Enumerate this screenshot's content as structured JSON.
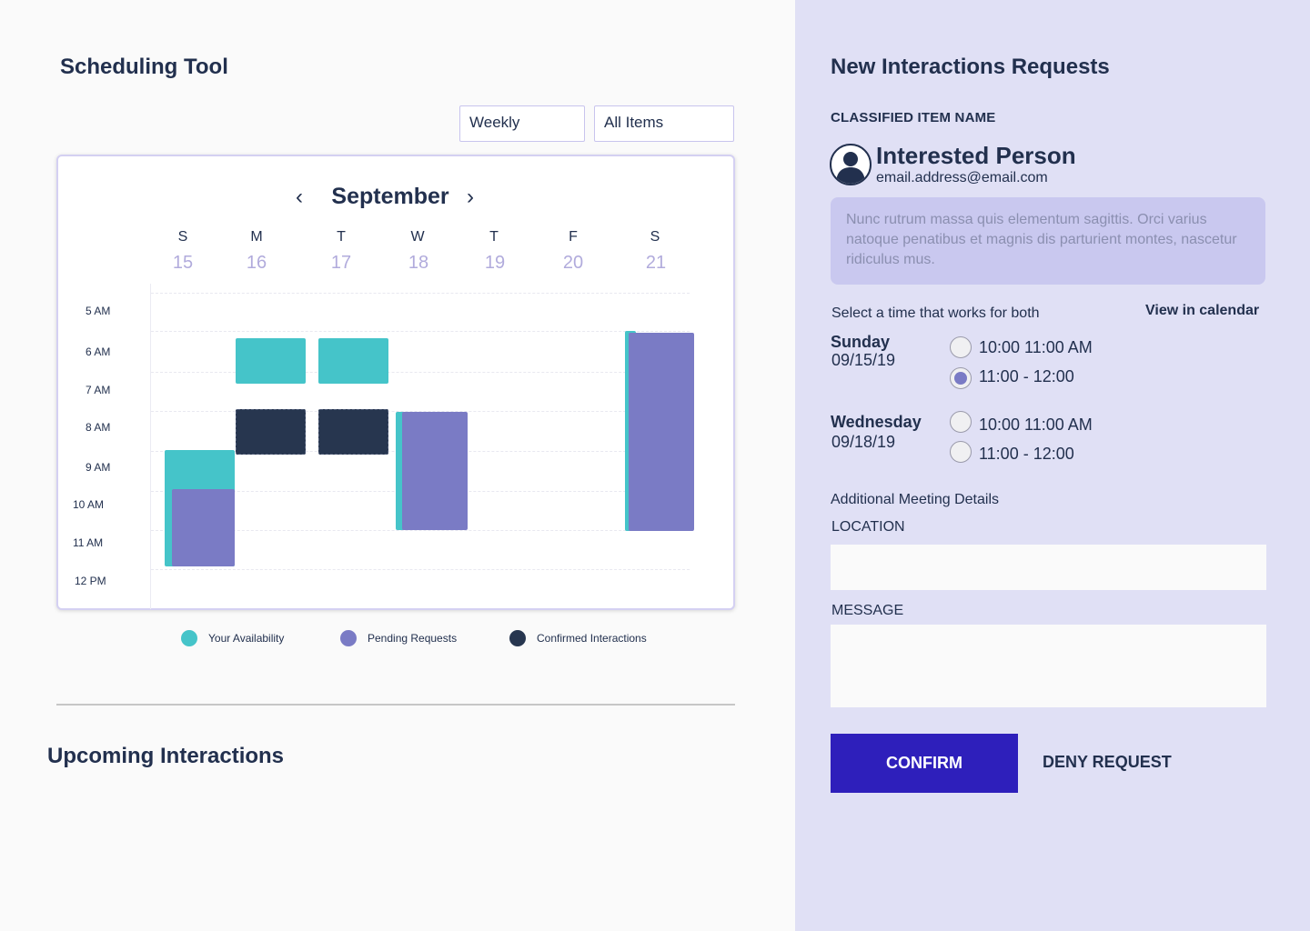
{
  "left": {
    "title": "Scheduling Tool",
    "filters": {
      "view": "Weekly",
      "items": "All Items"
    },
    "calendar": {
      "month": "September",
      "days": [
        {
          "letter": "S",
          "num": "15"
        },
        {
          "letter": "M",
          "num": "16"
        },
        {
          "letter": "T",
          "num": "17"
        },
        {
          "letter": "W",
          "num": "18"
        },
        {
          "letter": "T",
          "num": "19"
        },
        {
          "letter": "F",
          "num": "20"
        },
        {
          "letter": "S",
          "num": "21"
        }
      ],
      "times": [
        "5 AM",
        "6 AM",
        "7 AM",
        "8 AM",
        "9 AM",
        "10 AM",
        "11 AM",
        "12 PM"
      ]
    },
    "legend": {
      "availability": "Your Availability",
      "pending": "Pending Requests",
      "confirmed": "Confirmed Interactions"
    },
    "upcoming_title": "Upcoming Interactions"
  },
  "right": {
    "title": "New Interactions Requests",
    "item_name": "CLASSIFIED ITEM NAME",
    "person": {
      "name": "Interested Person",
      "email": "email.address@email.com"
    },
    "message": "Nunc rutrum massa quis elementum sagittis. Orci varius natoque penatibus et magnis dis parturient montes, nascetur ridiculus mus.",
    "select_time": "Select a time that works for both",
    "view_calendar": "View in calendar",
    "options": [
      {
        "day": "Sunday",
        "date": "09/15/19",
        "slot1": "10:00 11:00 AM",
        "slot2": "11:00 - 12:00"
      },
      {
        "day": "Wednesday",
        "date": "09/18/19",
        "slot1": "10:00 11:00 AM",
        "slot2": "11:00 - 12:00"
      }
    ],
    "additional": "Additional Meeting Details",
    "location_label": "LOCATION",
    "message_label": "MESSAGE",
    "confirm": "CONFIRM",
    "deny": "DENY REQUEST"
  },
  "colors": {
    "teal": "#45c4c9",
    "purple": "#7a7bc5",
    "navy": "#27364f",
    "accent": "#2e1fbb"
  }
}
